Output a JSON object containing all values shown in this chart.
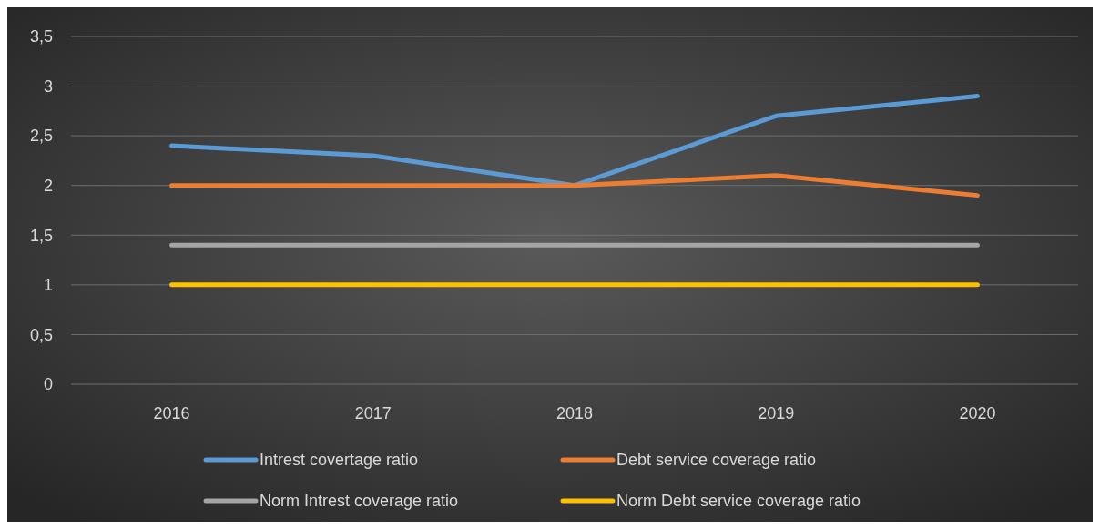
{
  "chart_data": {
    "type": "line",
    "categories": [
      "2016",
      "2017",
      "2018",
      "2019",
      "2020"
    ],
    "series": [
      {
        "name": "Intrest covertage ratio",
        "color": "#5b9bd5",
        "values": [
          2.4,
          2.3,
          2.0,
          2.7,
          2.9
        ]
      },
      {
        "name": "Debt service coverage ratio",
        "color": "#ed7d31",
        "values": [
          2,
          2,
          2,
          2.1,
          1.9
        ]
      },
      {
        "name": "Norm Intrest coverage ratio",
        "color": "#a5a5a5",
        "values": [
          1.4,
          1.4,
          1.4,
          1.4,
          1.4
        ]
      },
      {
        "name": "Norm Debt service coverage ratio",
        "color": "#ffc000",
        "values": [
          1,
          1,
          1,
          1,
          1
        ]
      }
    ],
    "ylim": [
      0,
      3.5
    ],
    "yticks": [
      0,
      {
        "value": 0.5,
        "label": "0,5"
      },
      1,
      {
        "value": 1.5,
        "label": "1,5"
      },
      2,
      {
        "value": 2.5,
        "label": "2,5"
      },
      3,
      {
        "value": 3.5,
        "label": "3,5"
      }
    ],
    "grid": "y",
    "legend": "bottom",
    "marker": "none",
    "line_style": "solid"
  }
}
